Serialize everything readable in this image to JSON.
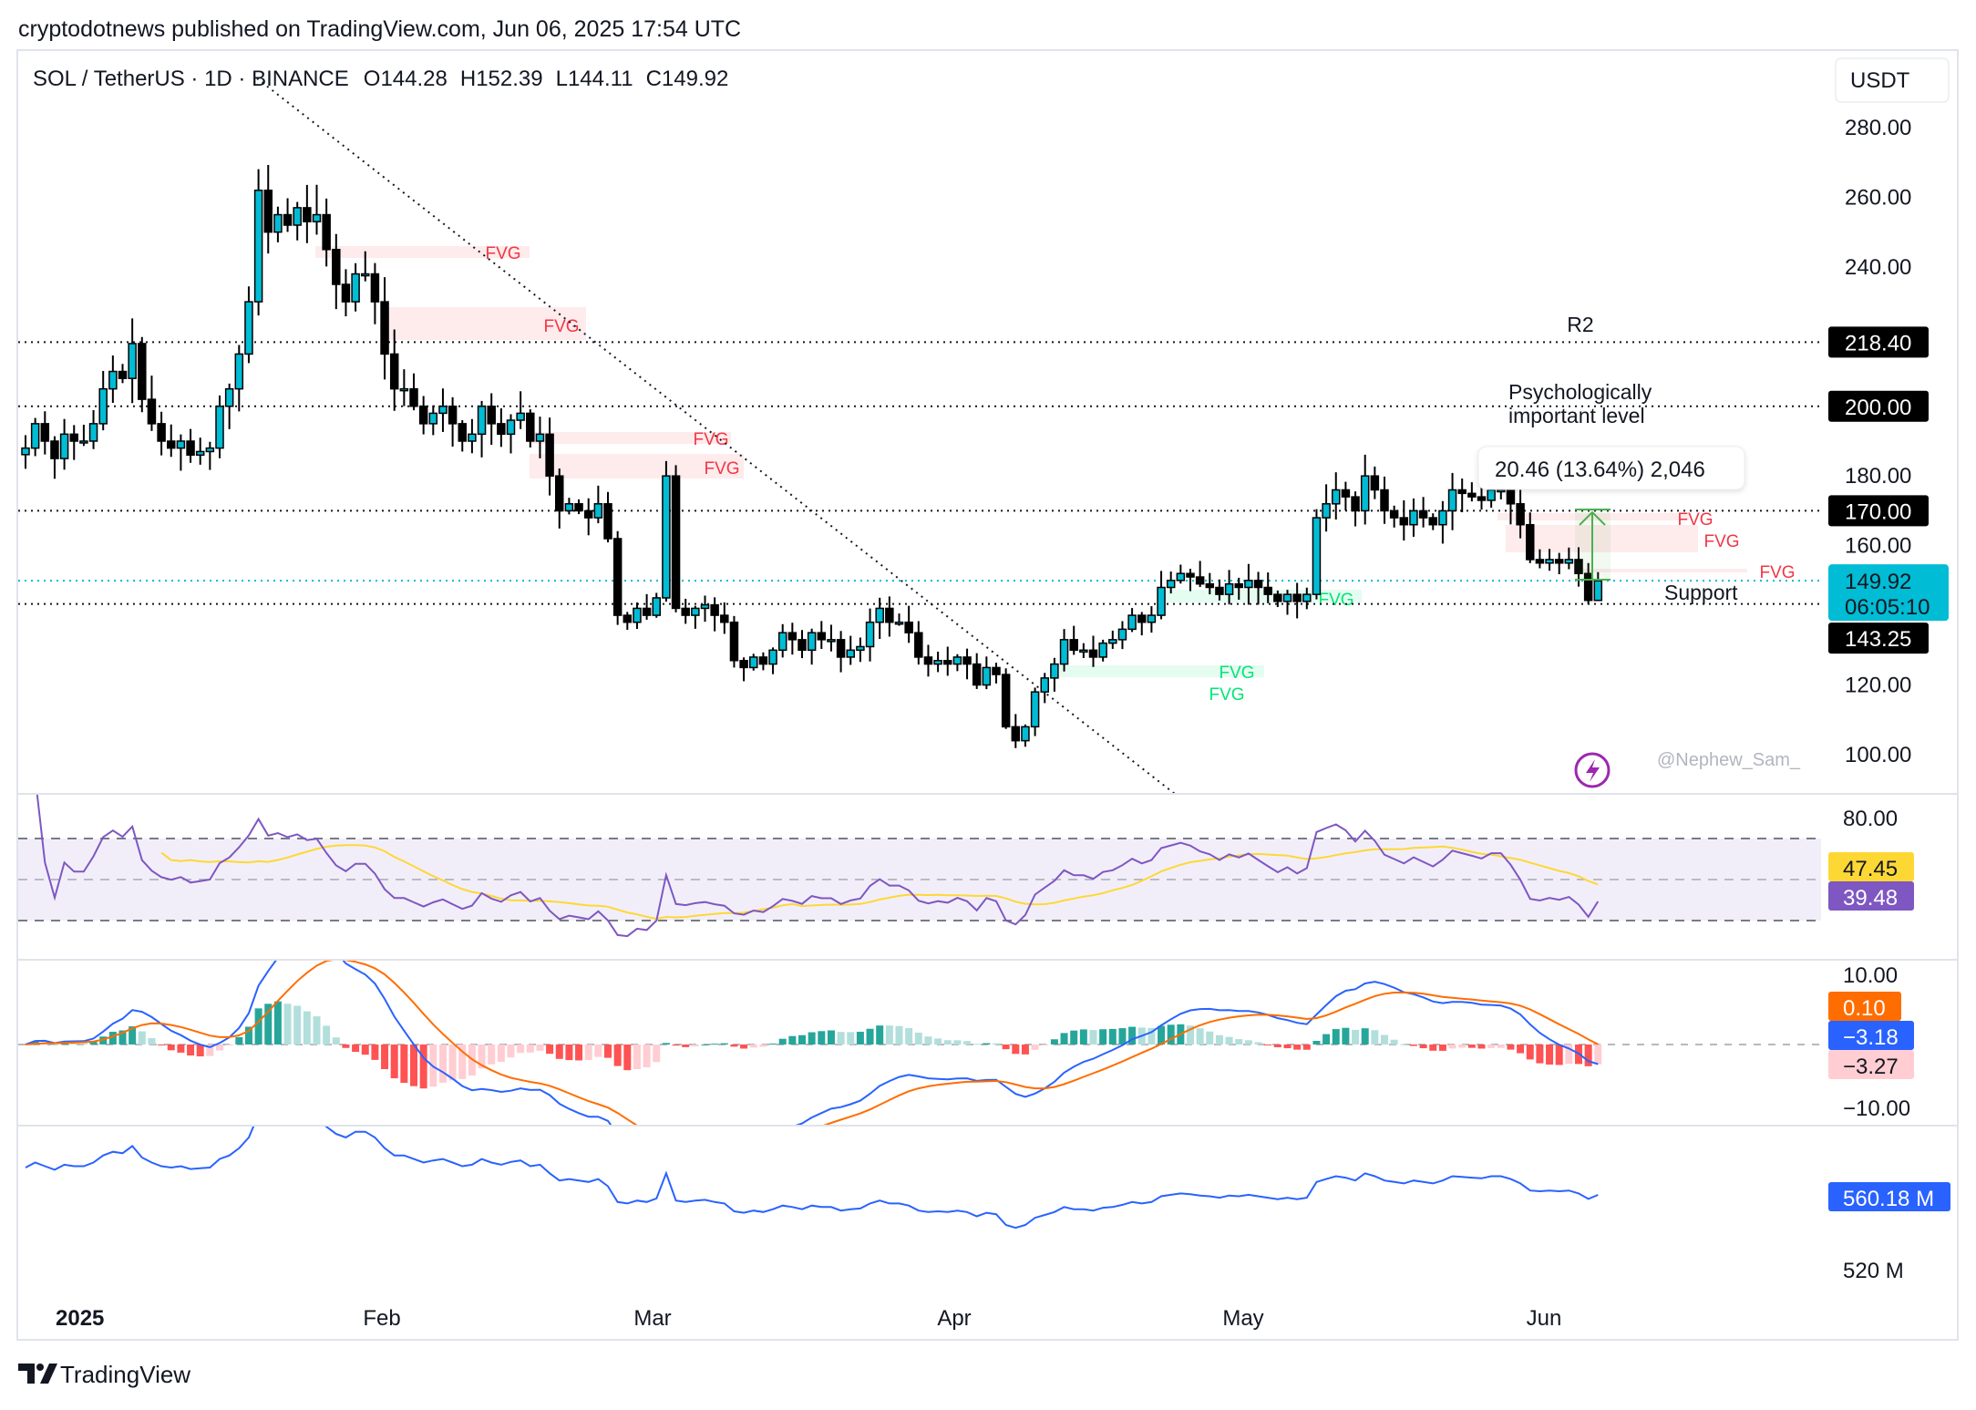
{
  "header": {
    "published": "cryptodotnews published on TradingView.com, Jun 06, 2025 17:54 UTC"
  },
  "legend": {
    "symbol": "SOL / TetherUS · 1D · BINANCE",
    "open": "O144.28",
    "high": "H152.39",
    "low": "L144.11",
    "close": "C149.92"
  },
  "currency": "USDT",
  "price_axis": {
    "ticks": [
      "280.00",
      "260.00",
      "240.00",
      "180.00",
      "160.00",
      "120.00",
      "100.00"
    ],
    "tick_values": [
      280,
      260,
      240,
      180,
      160,
      120,
      100
    ]
  },
  "levels": [
    {
      "value": 218.4,
      "label": "218.40",
      "note": "R2"
    },
    {
      "value": 200.0,
      "label": "200.00",
      "note_line1": "Psychologically",
      "note_line2": "important level"
    },
    {
      "value": 170.0,
      "label": "170.00"
    },
    {
      "value": 143.25,
      "label": "143.25",
      "note": "Support"
    }
  ],
  "last_price": {
    "value": 149.92,
    "label": "149.92",
    "countdown": "06:05:10",
    "color": "#00bcd4"
  },
  "fvg_labels": [
    "FVG",
    "FVG",
    "FVG",
    "FVG",
    "FVG",
    "FVG",
    "FVG",
    "FVG",
    "FVG",
    "FVG"
  ],
  "measure": {
    "text": "20.46 (13.64%) 2,046"
  },
  "watermark": "@Nephew_Sam_",
  "time_axis": [
    "2025",
    "Feb",
    "Mar",
    "Apr",
    "May",
    "Jun"
  ],
  "rsi": {
    "axis_label": "80.00",
    "ma_value": "47.45",
    "rsi_value": "39.48",
    "ma_color": "#fdd835",
    "rsi_color": "#7e57c2"
  },
  "macd": {
    "axis_top": "10.00",
    "axis_bottom": "−10.00",
    "signal_value": "0.10",
    "macd_value": "−3.18",
    "hist_value": "−3.27",
    "signal_color": "#ff6d00",
    "macd_color": "#2962ff"
  },
  "obv": {
    "value": "560.18 M",
    "axis_label": "520 M",
    "color": "#2962ff"
  },
  "footer": {
    "brand": "TradingView"
  },
  "chart_data": {
    "type": "candlestick",
    "start_date": "2024-12-26",
    "end_date": "2025-06-06",
    "interval": "1D",
    "ylim": [
      90,
      290
    ],
    "up_color": "#00bcd4",
    "down_color": "#000000",
    "last_candle": {
      "open": 144.28,
      "high": 152.39,
      "low": 144.11,
      "close": 149.92
    },
    "close": [
      188,
      195,
      190,
      185,
      192,
      190,
      190,
      195,
      205,
      210,
      208,
      218,
      202,
      195,
      190,
      188,
      190,
      186,
      187,
      188,
      200,
      205,
      215,
      230,
      262,
      250,
      255,
      252,
      257,
      253,
      255,
      245,
      235,
      230,
      238,
      238,
      230,
      215,
      205,
      205,
      200,
      195,
      198,
      200,
      195,
      190,
      192,
      200,
      195,
      192,
      196,
      198,
      190,
      192,
      180,
      170,
      172,
      170,
      168,
      172,
      162,
      140,
      138,
      142,
      140,
      145,
      180,
      142,
      140,
      142,
      143,
      140,
      138,
      127,
      125,
      128,
      126,
      130,
      135,
      133,
      130,
      135,
      133,
      133,
      128,
      130,
      131,
      138,
      142,
      138,
      138,
      135,
      128,
      126,
      127,
      126,
      128,
      126,
      120,
      125,
      123,
      108,
      104,
      108,
      118,
      122,
      126,
      133,
      130,
      130,
      128,
      132,
      133,
      136,
      140,
      138,
      140,
      148,
      150,
      152,
      151,
      149,
      148,
      146,
      149,
      148,
      150,
      148,
      146,
      144,
      146,
      144,
      146,
      168,
      172,
      176,
      174,
      170,
      180,
      176,
      170,
      168,
      166,
      170,
      168,
      166,
      170,
      176,
      175,
      174,
      173,
      176,
      176,
      172,
      166,
      156,
      155,
      156,
      155,
      156,
      152,
      144.28,
      149.92
    ]
  }
}
